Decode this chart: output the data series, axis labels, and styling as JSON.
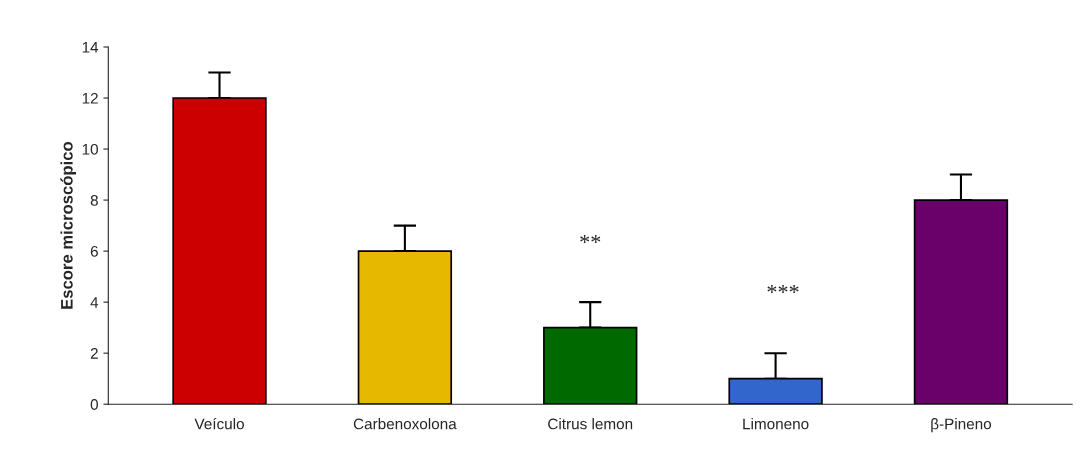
{
  "chart_data": {
    "type": "bar",
    "ylabel": "Escore microscópico",
    "categories": [
      "Veículo",
      "Carbenoxolona",
      "Citrus lemon",
      "Limoneno",
      "β-Pineno"
    ],
    "values": [
      12,
      6,
      3,
      1,
      8
    ],
    "errors": [
      [
        12,
        13
      ],
      [
        6,
        7
      ],
      [
        3,
        4
      ],
      [
        1,
        2
      ],
      [
        8,
        9
      ]
    ],
    "colors": [
      "#cc0000",
      "#e6b800",
      "#006a00",
      "#3366cc",
      "#6a006a"
    ],
    "ylim": [
      0,
      14
    ],
    "yticks": [
      0,
      2,
      4,
      6,
      8,
      10,
      12,
      14
    ],
    "grid": false,
    "annotations": [
      "**",
      "***"
    ]
  }
}
